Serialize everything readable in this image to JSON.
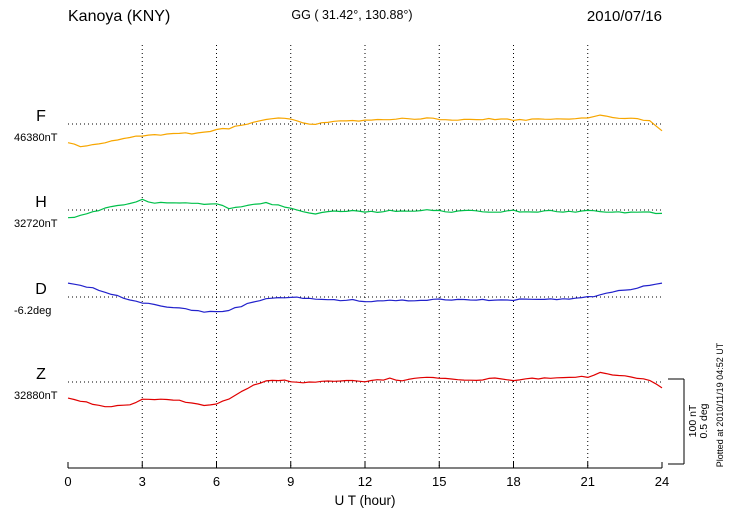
{
  "header": {
    "station": "Kanoya (KNY)",
    "coords": "GG ( 31.42°, 130.88°)",
    "date": "2010/07/16"
  },
  "footer": {
    "xlabel": "U T (hour)"
  },
  "side": {
    "scale_nt": "100 nT",
    "scale_deg": "0.5 deg",
    "plotted_at": "Plotted at 2010/11/19 04:52 UT"
  },
  "chart_data": {
    "type": "line",
    "title": "Kanoya (KNY) magnetogram 2010/07/16",
    "x_unit": "hour",
    "x_range": [
      0,
      24
    ],
    "x_step": 0.5,
    "x_ticks": [
      0,
      3,
      6,
      9,
      12,
      15,
      18,
      21,
      24
    ],
    "grid": "dotted-vertical-at-3h, dotted-horizontal-baselines",
    "scale_bar": {
      "nT": 100,
      "deg": 0.5
    },
    "series": [
      {
        "id": "F",
        "label": "F",
        "unit": "nT",
        "baseline_label": "46380nT",
        "baseline_value": 46380,
        "color": "#f7a600",
        "offsets": [
          -22,
          -26,
          -25,
          -22,
          -19,
          -16,
          -14,
          -13,
          -12,
          -11,
          -11,
          -9,
          -7,
          -5,
          -1,
          2,
          6,
          7,
          6,
          1,
          0,
          2,
          4,
          4,
          4,
          5,
          5,
          6,
          5,
          7,
          6,
          5,
          5,
          5,
          6,
          6,
          5,
          5,
          6,
          6,
          6,
          7,
          7,
          10,
          8,
          7,
          6,
          4,
          -8
        ]
      },
      {
        "id": "H",
        "label": "H",
        "unit": "nT",
        "baseline_label": "32720nT",
        "baseline_value": 32720,
        "color": "#00c04a",
        "offsets": [
          -9,
          -7,
          -2,
          2,
          6,
          7,
          12,
          8,
          9,
          8,
          8,
          7,
          8,
          1,
          4,
          6,
          8,
          6,
          2,
          -2,
          -4,
          -2,
          -1,
          -1,
          -2,
          -2,
          -1,
          -2,
          -1,
          0,
          -1,
          -2,
          -1,
          -1,
          -2,
          -2,
          -1,
          -2,
          -2,
          -1,
          -2,
          -2,
          -1,
          -2,
          -2,
          -3,
          -2,
          -3,
          -4
        ]
      },
      {
        "id": "D",
        "label": "D",
        "unit": "deg",
        "baseline_label": "-6.2deg",
        "baseline_value": -6.2,
        "color": "#2222cc",
        "offsets": [
          0.082,
          0.07,
          0.053,
          0.03,
          0.006,
          -0.018,
          -0.035,
          -0.047,
          -0.059,
          -0.065,
          -0.076,
          -0.088,
          -0.088,
          -0.076,
          -0.053,
          -0.03,
          -0.012,
          -0.006,
          0.0,
          -0.006,
          -0.012,
          -0.018,
          -0.018,
          -0.018,
          -0.024,
          -0.024,
          -0.018,
          -0.018,
          -0.024,
          -0.018,
          -0.012,
          -0.018,
          -0.018,
          -0.018,
          -0.018,
          -0.018,
          -0.018,
          -0.012,
          -0.012,
          -0.012,
          -0.012,
          -0.006,
          0.0,
          0.012,
          0.03,
          0.04,
          0.053,
          0.07,
          0.082
        ]
      },
      {
        "id": "Z",
        "label": "Z",
        "unit": "nT",
        "baseline_label": "32880nT",
        "baseline_value": 32880,
        "color": "#e00000",
        "offsets": [
          -19,
          -22,
          -26,
          -29,
          -28,
          -26,
          -21,
          -21,
          -20,
          -22,
          -25,
          -27,
          -26,
          -20,
          -11,
          -4,
          1,
          2,
          1,
          -1,
          0,
          1,
          1,
          2,
          1,
          2,
          4,
          2,
          5,
          6,
          5,
          4,
          2,
          2,
          4,
          4,
          2,
          4,
          4,
          5,
          5,
          6,
          6,
          11,
          9,
          7,
          5,
          2,
          -7
        ]
      }
    ]
  }
}
